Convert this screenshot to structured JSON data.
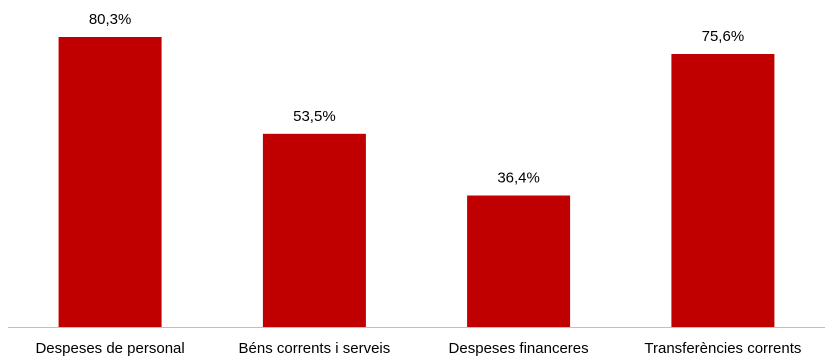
{
  "chart_data": {
    "type": "bar",
    "title": "",
    "xlabel": "",
    "ylabel": "",
    "ylim": [
      0,
      80.3
    ],
    "grid": false,
    "legend": "none",
    "categories": [
      "Despeses de personal",
      "Béns corrents i serveis",
      "Despeses financeres",
      "Transferències corrents"
    ],
    "values": [
      80.3,
      53.5,
      36.4,
      75.6
    ],
    "value_labels": [
      "80,3%",
      "53,5%",
      "36,4%",
      "75,6%"
    ],
    "bar_color": "#c00000",
    "axis_color": "#bfbfbf"
  }
}
